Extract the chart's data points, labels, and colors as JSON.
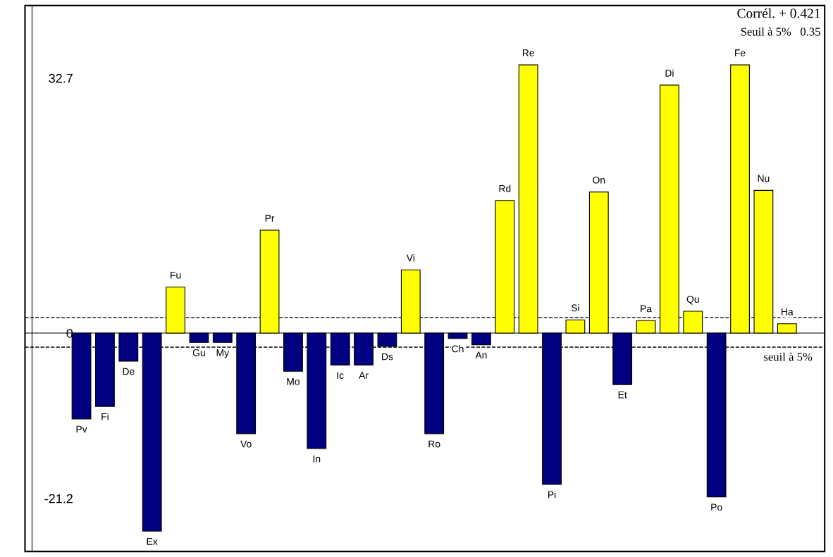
{
  "chart_data": {
    "type": "bar",
    "categories": [
      "Pv",
      "Fi",
      "De",
      "Ex",
      "Fu",
      "Gu",
      "My",
      "Vo",
      "Pr",
      "Mo",
      "In",
      "Ic",
      "Ar",
      "Ds",
      "Vi",
      "Ro",
      "Ch",
      "An",
      "Rd",
      "Re",
      "Pi",
      "Si",
      "On",
      "Et",
      "Pa",
      "Di",
      "Qu",
      "Po",
      "Fe",
      "Nu",
      "Ha"
    ],
    "values": [
      -11.0,
      -9.4,
      -3.6,
      -25.4,
      5.9,
      -1.2,
      -1.2,
      -12.9,
      13.2,
      -4.9,
      -14.8,
      -4.1,
      -4.1,
      -1.7,
      8.1,
      -12.9,
      -0.7,
      -1.5,
      17.0,
      34.4,
      -19.4,
      1.7,
      18.1,
      -6.6,
      1.6,
      31.8,
      2.8,
      -21.0,
      34.4,
      18.3,
      1.2
    ],
    "colors": [
      "#000080",
      "#000080",
      "#000080",
      "#000080",
      "#ffff00",
      "#000080",
      "#000080",
      "#000080",
      "#ffff00",
      "#000080",
      "#000080",
      "#000080",
      "#000080",
      "#000080",
      "#ffff00",
      "#000080",
      "#000080",
      "#000080",
      "#ffff00",
      "#ffff00",
      "#000080",
      "#ffff00",
      "#ffff00",
      "#000080",
      "#ffff00",
      "#ffff00",
      "#ffff00",
      "#000080",
      "#ffff00",
      "#ffff00",
      "#ffff00"
    ],
    "ylim": [
      -28,
      42
    ],
    "yticks": [
      32.7,
      0,
      -21.2
    ],
    "ref_lines": [
      {
        "axis": "y",
        "value": 2.0,
        "label": null,
        "line_style": "dashed"
      },
      {
        "axis": "y",
        "value": -1.8,
        "label": "seuil à 5%",
        "line_style": "dashed"
      }
    ],
    "annotations": [
      "Corrél. + 0.421",
      "Seuil à 5%   0.35"
    ],
    "grid": false,
    "legend": false
  }
}
